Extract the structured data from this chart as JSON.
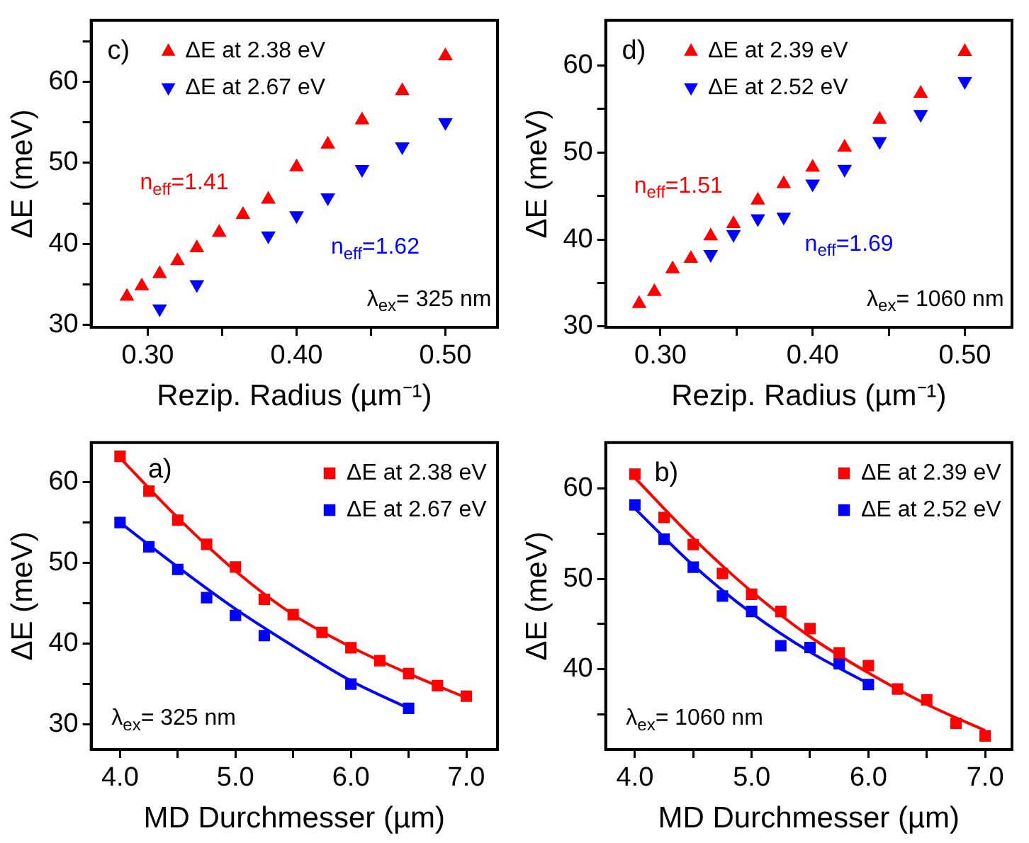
{
  "chart_data": [
    {
      "type": "scatter",
      "xlabel": "Rezip. Radius (µm⁻¹)",
      "ylabel": "ΔE (meV)",
      "marker": "triangle",
      "legend": "top left",
      "xlim": [
        0.262,
        0.535
      ],
      "ylim": [
        29.7,
        67.6
      ],
      "xticks": [
        {
          "value": 0.3,
          "label": "0.30"
        },
        {
          "value": 0.35,
          "label": null
        },
        {
          "value": 0.4,
          "label": "0.40"
        },
        {
          "value": 0.45,
          "label": null
        },
        {
          "value": 0.5,
          "label": "0.50"
        }
      ],
      "yticks": [
        30,
        {
          "value": 35,
          "label": null
        },
        40,
        {
          "value": 45,
          "label": null
        },
        50,
        {
          "value": 55,
          "label": null
        },
        60,
        {
          "value": 65,
          "label": null
        }
      ],
      "annotations": [
        "c)",
        "n$_{eff}$=1.41",
        "n$_{eff}$=1.62",
        "λ$_{ex}$= 325 nm"
      ],
      "series": [
        {
          "name": "ΔE at 2.38 eV",
          "color": "#ff0000",
          "x": [
            0.286,
            0.296,
            0.308,
            0.32,
            0.333,
            0.348,
            0.364,
            0.381,
            0.4,
            0.421,
            0.444,
            0.471,
            0.5
          ],
          "values": [
            33.5,
            34.8,
            36.3,
            37.9,
            39.5,
            41.4,
            43.6,
            45.5,
            49.5,
            52.3,
            55.3,
            58.9,
            63.2
          ]
        },
        {
          "name": "ΔE at 2.67 eV",
          "color": "#0000ff",
          "x": [
            0.308,
            0.333,
            0.381,
            0.4,
            0.421,
            0.444,
            0.471,
            0.5
          ],
          "values": [
            32.0,
            35.0,
            41.0,
            43.5,
            45.7,
            49.2,
            52.0,
            55.0
          ]
        }
      ]
    },
    {
      "type": "scatter",
      "xlabel": "Rezip. Radius (µm⁻¹)",
      "ylabel": "ΔE (meV)",
      "marker": "triangle",
      "legend": "top left",
      "xlim": [
        0.264,
        0.531
      ],
      "ylim": [
        29.9,
        65.2
      ],
      "xticks": [
        {
          "value": 0.3,
          "label": "0.30"
        },
        {
          "value": 0.35,
          "label": null
        },
        {
          "value": 0.4,
          "label": "0.40"
        },
        {
          "value": 0.45,
          "label": null
        },
        {
          "value": 0.5,
          "label": "0.50"
        }
      ],
      "yticks": [
        30,
        {
          "value": 35,
          "label": null
        },
        40,
        {
          "value": 45,
          "label": null
        },
        50,
        {
          "value": 55,
          "label": null
        },
        60
      ],
      "annotations": [
        "d)",
        "n$_{eff}$=1.51",
        "n$_{eff}$=1.69",
        "λ$_{ex}$= 1060 nm"
      ],
      "series": [
        {
          "name": "ΔE at 2.39 eV",
          "color": "#ff0000",
          "x": [
            0.286,
            0.296,
            0.308,
            0.32,
            0.333,
            0.348,
            0.364,
            0.381,
            0.4,
            0.421,
            0.444,
            0.471,
            0.5
          ],
          "values": [
            32.6,
            34.0,
            36.6,
            37.8,
            40.4,
            41.8,
            44.5,
            46.4,
            48.3,
            50.6,
            53.8,
            56.8,
            61.6
          ]
        },
        {
          "name": "ΔE at 2.52 eV",
          "color": "#0000ff",
          "x": [
            0.333,
            0.348,
            0.364,
            0.381,
            0.4,
            0.421,
            0.444,
            0.471,
            0.5
          ],
          "values": [
            38.3,
            40.6,
            42.4,
            42.6,
            46.4,
            48.1,
            51.3,
            54.4,
            58.2
          ]
        }
      ]
    },
    {
      "type": "scatter",
      "xlabel": "MD Durchmesser (µm)",
      "ylabel": "ΔE (meV)",
      "marker": "square",
      "legend": "top right",
      "xlim": [
        3.75,
        7.27
      ],
      "ylim": [
        26.9,
        64.9
      ],
      "xticks": [
        {
          "value": 4,
          "label": "4.0"
        },
        {
          "value": 4.5,
          "label": null
        },
        {
          "value": 5,
          "label": "5.0"
        },
        {
          "value": 5.5,
          "label": null
        },
        {
          "value": 6,
          "label": "6.0"
        },
        {
          "value": 6.5,
          "label": null
        },
        {
          "value": 7,
          "label": "7.0"
        }
      ],
      "yticks": [
        30,
        {
          "value": 35,
          "label": null
        },
        40,
        {
          "value": 45,
          "label": null
        },
        50,
        {
          "value": 55,
          "label": null
        },
        60
      ],
      "annotations": [
        "a)",
        "λ$_{ex}$= 325 nm"
      ],
      "series": [
        {
          "name": "ΔE at 2.38 eV",
          "color": "#ff0000",
          "x": [
            4,
            4.25,
            4.5,
            4.75,
            5,
            5.25,
            5.5,
            5.75,
            6,
            6.25,
            6.5,
            6.75,
            7
          ],
          "values": [
            63.2,
            58.9,
            55.3,
            52.3,
            49.5,
            45.5,
            43.6,
            41.4,
            39.5,
            37.9,
            36.3,
            34.8,
            33.5
          ]
        },
        {
          "name": "ΔE at 2.67 eV",
          "color": "#0000ff",
          "x": [
            4,
            4.25,
            4.5,
            4.75,
            5,
            5.25,
            6,
            6.5
          ],
          "values": [
            55.0,
            52.0,
            49.2,
            45.7,
            43.5,
            41.0,
            35.0,
            32.0
          ]
        },
        {
          "type": "line",
          "marker": "none",
          "color": "#ff0000",
          "x": [
            4,
            4.5,
            5,
            5.5,
            6,
            6.5,
            7
          ],
          "values": [
            63.0,
            55.6,
            49.0,
            43.6,
            39.6,
            36.3,
            33.3
          ]
        },
        {
          "type": "line",
          "marker": "none",
          "color": "#0000ff",
          "x": [
            4,
            4.5,
            5,
            5.5,
            6,
            6.5
          ],
          "values": [
            55.0,
            49.5,
            44.3,
            39.7,
            35.4,
            32.0
          ]
        }
      ]
    },
    {
      "type": "scatter",
      "xlabel": "MD Durchmesser (µm)",
      "ylabel": "ΔE (meV)",
      "marker": "square",
      "legend": "top right",
      "xlim": [
        3.75,
        7.23
      ],
      "ylim": [
        31.1,
        65.1
      ],
      "xticks": [
        {
          "value": 4,
          "label": "4.0"
        },
        {
          "value": 4.5,
          "label": null
        },
        {
          "value": 5,
          "label": "5.0"
        },
        {
          "value": 5.5,
          "label": null
        },
        {
          "value": 6,
          "label": "6.0"
        },
        {
          "value": 6.5,
          "label": null
        },
        {
          "value": 7,
          "label": "7.0"
        }
      ],
      "yticks": [
        {
          "value": 35,
          "label": null
        },
        40,
        {
          "value": 45,
          "label": null
        },
        50,
        {
          "value": 55,
          "label": null
        },
        60
      ],
      "annotations": [
        "b)",
        "λ$_{ex}$= 1060 nm"
      ],
      "series": [
        {
          "name": "ΔE at 2.39 eV",
          "color": "#ff0000",
          "x": [
            4,
            4.25,
            4.5,
            4.75,
            5,
            5.25,
            5.5,
            5.75,
            6,
            6.25,
            6.5,
            6.75,
            7
          ],
          "values": [
            61.6,
            56.8,
            53.8,
            50.6,
            48.3,
            46.4,
            44.5,
            41.8,
            40.4,
            37.8,
            36.6,
            34.0,
            32.6
          ]
        },
        {
          "name": "ΔE at 2.52 eV",
          "color": "#0000ff",
          "x": [
            4,
            4.25,
            4.5,
            4.75,
            5,
            5.25,
            5.5,
            5.75,
            6
          ],
          "values": [
            58.2,
            54.4,
            51.3,
            48.1,
            46.4,
            42.6,
            42.4,
            40.6,
            38.3
          ]
        },
        {
          "type": "line",
          "marker": "none",
          "color": "#ff0000",
          "x": [
            4,
            4.5,
            5,
            5.5,
            6,
            6.5,
            7
          ],
          "values": [
            61.2,
            54.5,
            48.6,
            43.6,
            39.6,
            36.1,
            33.2
          ]
        },
        {
          "type": "line",
          "marker": "none",
          "color": "#0000ff",
          "x": [
            4,
            4.5,
            5,
            5.5,
            6
          ],
          "values": [
            57.8,
            51.5,
            46.2,
            41.9,
            38.4
          ]
        }
      ]
    }
  ]
}
